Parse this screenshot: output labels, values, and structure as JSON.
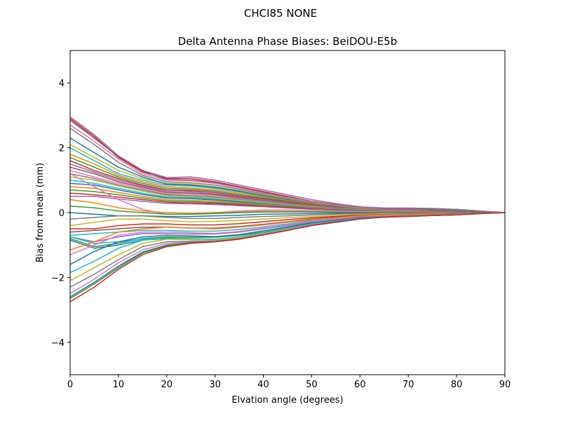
{
  "suptitle": "CHCI85           NONE",
  "chart_data": {
    "type": "line",
    "title": "Delta Antenna Phase Biases: BeiDOU-E5b",
    "xlabel": "Elvation angle (degrees)",
    "ylabel": "Bias from mean (mm)",
    "xlim": [
      0,
      90
    ],
    "ylim": [
      -5,
      5
    ],
    "xticks": [
      0,
      10,
      20,
      30,
      40,
      50,
      60,
      70,
      80,
      90
    ],
    "yticks": [
      -4,
      -2,
      0,
      2,
      4
    ],
    "xtick_labels": [
      "0",
      "10",
      "20",
      "30",
      "40",
      "50",
      "60",
      "70",
      "80",
      "90"
    ],
    "ytick_labels": [
      "−4",
      "−2",
      "0",
      "2",
      "4"
    ],
    "grid": false,
    "legend": "none",
    "x": [
      0,
      5,
      10,
      15,
      20,
      25,
      30,
      35,
      40,
      45,
      50,
      55,
      60,
      65,
      70,
      75,
      80,
      85,
      90
    ],
    "series": [
      {
        "color": "#d62728",
        "values": [
          2.9,
          2.35,
          1.7,
          1.25,
          1.05,
          1.05,
          0.95,
          0.8,
          0.65,
          0.5,
          0.35,
          0.25,
          0.15,
          0.12,
          0.12,
          0.12,
          0.1,
          0.05,
          0.0
        ]
      },
      {
        "color": "#9467bd",
        "values": [
          2.95,
          2.4,
          1.75,
          1.3,
          1.08,
          1.1,
          1.0,
          0.85,
          0.7,
          0.55,
          0.4,
          0.28,
          0.18,
          0.14,
          0.14,
          0.13,
          0.1,
          0.05,
          0.0
        ]
      },
      {
        "color": "#8c564b",
        "values": [
          2.85,
          2.3,
          1.72,
          1.28,
          1.02,
          1.0,
          0.92,
          0.78,
          0.62,
          0.48,
          0.34,
          0.24,
          0.15,
          0.12,
          0.12,
          0.11,
          0.09,
          0.04,
          0.0
        ]
      },
      {
        "color": "#e377c2",
        "values": [
          2.7,
          2.2,
          1.65,
          1.2,
          1.0,
          0.98,
          0.9,
          0.76,
          0.6,
          0.46,
          0.33,
          0.23,
          0.14,
          0.11,
          0.11,
          0.1,
          0.08,
          0.04,
          0.0
        ]
      },
      {
        "color": "#7f7f7f",
        "values": [
          2.6,
          2.1,
          1.55,
          1.15,
          0.95,
          0.92,
          0.85,
          0.72,
          0.57,
          0.44,
          0.31,
          0.22,
          0.13,
          0.1,
          0.1,
          0.1,
          0.08,
          0.04,
          0.0
        ]
      },
      {
        "color": "#bcbd22",
        "values": [
          2.1,
          1.7,
          1.3,
          1.05,
          0.9,
          0.88,
          0.8,
          0.68,
          0.54,
          0.42,
          0.3,
          0.21,
          0.13,
          0.1,
          0.1,
          0.09,
          0.07,
          0.03,
          0.0
        ]
      },
      {
        "color": "#17becf",
        "values": [
          2.0,
          1.6,
          1.2,
          1.0,
          0.85,
          0.82,
          0.75,
          0.64,
          0.51,
          0.4,
          0.28,
          0.2,
          0.12,
          0.09,
          0.09,
          0.09,
          0.07,
          0.03,
          0.0
        ]
      },
      {
        "color": "#1f77b4",
        "values": [
          2.3,
          1.85,
          1.4,
          1.1,
          0.88,
          0.85,
          0.78,
          0.66,
          0.52,
          0.4,
          0.29,
          0.2,
          0.12,
          0.1,
          0.1,
          0.09,
          0.07,
          0.03,
          0.0
        ]
      },
      {
        "color": "#ff7f0e",
        "values": [
          1.8,
          1.5,
          1.15,
          0.95,
          0.8,
          0.76,
          0.7,
          0.6,
          0.48,
          0.37,
          0.27,
          0.19,
          0.12,
          0.09,
          0.09,
          0.08,
          0.06,
          0.03,
          0.0
        ]
      },
      {
        "color": "#2ca02c",
        "values": [
          1.7,
          1.4,
          1.1,
          0.9,
          0.75,
          0.72,
          0.66,
          0.56,
          0.45,
          0.35,
          0.25,
          0.18,
          0.11,
          0.08,
          0.08,
          0.08,
          0.06,
          0.03,
          0.0
        ]
      },
      {
        "color": "#d62728",
        "values": [
          1.6,
          1.3,
          1.05,
          0.85,
          0.7,
          0.68,
          0.62,
          0.52,
          0.42,
          0.33,
          0.24,
          0.17,
          0.1,
          0.08,
          0.08,
          0.07,
          0.05,
          0.02,
          0.0
        ]
      },
      {
        "color": "#9467bd",
        "values": [
          1.5,
          1.25,
          1.0,
          0.82,
          0.66,
          0.64,
          0.58,
          0.49,
          0.4,
          0.31,
          0.22,
          0.16,
          0.1,
          0.07,
          0.07,
          0.07,
          0.05,
          0.02,
          0.0
        ]
      },
      {
        "color": "#8c564b",
        "values": [
          1.4,
          1.2,
          0.95,
          0.78,
          0.62,
          0.6,
          0.55,
          0.46,
          0.37,
          0.29,
          0.21,
          0.15,
          0.09,
          0.07,
          0.07,
          0.06,
          0.05,
          0.02,
          0.0
        ]
      },
      {
        "color": "#e377c2",
        "values": [
          1.3,
          1.1,
          0.9,
          0.74,
          0.58,
          0.56,
          0.51,
          0.43,
          0.35,
          0.27,
          0.2,
          0.14,
          0.09,
          0.07,
          0.07,
          0.06,
          0.05,
          0.02,
          0.0
        ]
      },
      {
        "color": "#7f7f7f",
        "values": [
          1.2,
          1.05,
          0.85,
          0.7,
          0.55,
          0.52,
          0.48,
          0.4,
          0.33,
          0.26,
          0.19,
          0.13,
          0.08,
          0.06,
          0.06,
          0.06,
          0.04,
          0.02,
          0.0
        ]
      },
      {
        "color": "#bcbd22",
        "values": [
          1.1,
          1.0,
          0.82,
          0.66,
          0.52,
          0.49,
          0.45,
          0.38,
          0.31,
          0.24,
          0.18,
          0.12,
          0.08,
          0.06,
          0.06,
          0.05,
          0.04,
          0.02,
          0.0
        ]
      },
      {
        "color": "#17becf",
        "values": [
          1.0,
          0.9,
          0.75,
          0.6,
          0.48,
          0.46,
          0.42,
          0.35,
          0.29,
          0.23,
          0.17,
          0.12,
          0.07,
          0.06,
          0.06,
          0.05,
          0.04,
          0.02,
          0.0
        ]
      },
      {
        "color": "#1f77b4",
        "values": [
          0.9,
          0.85,
          0.7,
          0.56,
          0.45,
          0.43,
          0.39,
          0.33,
          0.27,
          0.21,
          0.16,
          0.11,
          0.07,
          0.05,
          0.05,
          0.05,
          0.04,
          0.02,
          0.0
        ]
      },
      {
        "color": "#ff7f0e",
        "values": [
          0.8,
          0.75,
          0.62,
          0.5,
          0.4,
          0.38,
          0.35,
          0.3,
          0.25,
          0.2,
          0.15,
          0.1,
          0.06,
          0.05,
          0.05,
          0.04,
          0.03,
          0.01,
          0.0
        ]
      },
      {
        "color": "#2ca02c",
        "values": [
          0.7,
          0.65,
          0.55,
          0.45,
          0.36,
          0.34,
          0.31,
          0.27,
          0.22,
          0.18,
          0.13,
          0.09,
          0.06,
          0.04,
          0.04,
          0.04,
          0.03,
          0.01,
          0.0
        ]
      },
      {
        "color": "#d62728",
        "values": [
          0.6,
          0.55,
          0.48,
          0.4,
          0.32,
          0.3,
          0.28,
          0.24,
          0.2,
          0.16,
          0.12,
          0.08,
          0.05,
          0.04,
          0.04,
          0.04,
          0.03,
          0.01,
          0.0
        ]
      },
      {
        "color": "#9467bd",
        "values": [
          0.5,
          0.5,
          0.42,
          0.35,
          0.28,
          0.27,
          0.25,
          0.21,
          0.18,
          0.14,
          0.1,
          0.07,
          0.05,
          0.04,
          0.04,
          0.03,
          0.02,
          0.01,
          0.0
        ]
      },
      {
        "color": "#e377c2",
        "values": [
          1.2,
          0.8,
          0.4,
          0.1,
          -0.05,
          -0.05,
          0.0,
          0.05,
          0.08,
          0.08,
          0.06,
          0.04,
          0.03,
          0.02,
          0.02,
          0.02,
          0.01,
          0.0,
          0.0
        ]
      },
      {
        "color": "#ff7f0e",
        "values": [
          0.4,
          0.3,
          0.15,
          0.05,
          0.0,
          -0.02,
          0.0,
          0.02,
          0.04,
          0.04,
          0.03,
          0.02,
          0.01,
          0.01,
          0.01,
          0.01,
          0.0,
          0.0,
          0.0
        ]
      },
      {
        "color": "#2ca02c",
        "values": [
          0.2,
          0.15,
          0.05,
          0.0,
          -0.05,
          -0.05,
          -0.03,
          0.0,
          0.02,
          0.02,
          0.02,
          0.01,
          0.0,
          0.0,
          0.0,
          0.0,
          0.0,
          0.0,
          0.0
        ]
      },
      {
        "color": "#1f77b4",
        "values": [
          0.0,
          -0.05,
          -0.1,
          -0.1,
          -0.12,
          -0.12,
          -0.1,
          -0.08,
          -0.05,
          -0.04,
          -0.03,
          -0.02,
          -0.01,
          -0.01,
          -0.01,
          -0.01,
          0.0,
          0.0,
          0.0
        ]
      },
      {
        "color": "#7f7f7f",
        "values": [
          -0.2,
          -0.15,
          -0.1,
          -0.1,
          -0.15,
          -0.18,
          -0.18,
          -0.15,
          -0.12,
          -0.1,
          -0.07,
          -0.05,
          -0.03,
          -0.02,
          -0.02,
          -0.02,
          -0.01,
          0.0,
          0.0
        ]
      },
      {
        "color": "#bcbd22",
        "values": [
          -0.4,
          -0.3,
          -0.2,
          -0.2,
          -0.25,
          -0.28,
          -0.27,
          -0.24,
          -0.2,
          -0.16,
          -0.12,
          -0.09,
          -0.06,
          -0.04,
          -0.04,
          -0.03,
          -0.02,
          -0.01,
          0.0
        ]
      },
      {
        "color": "#d62728",
        "values": [
          -0.5,
          -0.5,
          -0.4,
          -0.35,
          -0.35,
          -0.38,
          -0.38,
          -0.34,
          -0.28,
          -0.22,
          -0.16,
          -0.12,
          -0.08,
          -0.06,
          -0.05,
          -0.04,
          -0.03,
          -0.01,
          0.0
        ]
      },
      {
        "color": "#8c564b",
        "values": [
          -0.6,
          -0.55,
          -0.5,
          -0.45,
          -0.45,
          -0.48,
          -0.48,
          -0.43,
          -0.36,
          -0.28,
          -0.2,
          -0.15,
          -0.1,
          -0.07,
          -0.06,
          -0.05,
          -0.04,
          -0.02,
          0.0
        ]
      },
      {
        "color": "#17becf",
        "values": [
          -0.7,
          -0.65,
          -0.6,
          -0.55,
          -0.55,
          -0.57,
          -0.57,
          -0.52,
          -0.44,
          -0.35,
          -0.25,
          -0.18,
          -0.12,
          -0.09,
          -0.08,
          -0.06,
          -0.05,
          -0.02,
          0.0
        ]
      },
      {
        "color": "#9467bd",
        "values": [
          -0.75,
          -0.9,
          -0.75,
          -0.65,
          -0.65,
          -0.66,
          -0.66,
          -0.6,
          -0.5,
          -0.4,
          -0.29,
          -0.21,
          -0.14,
          -0.1,
          -0.09,
          -0.07,
          -0.05,
          -0.02,
          0.0
        ]
      },
      {
        "color": "#2ca02c",
        "values": [
          -0.8,
          -1.05,
          -0.95,
          -0.8,
          -0.75,
          -0.76,
          -0.76,
          -0.7,
          -0.6,
          -0.47,
          -0.34,
          -0.25,
          -0.17,
          -0.12,
          -0.1,
          -0.08,
          -0.06,
          -0.03,
          0.0
        ]
      },
      {
        "color": "#17becf",
        "values": [
          -0.75,
          -0.95,
          -0.9,
          -0.82,
          -0.8,
          -0.82,
          -0.84,
          -0.78,
          -0.66,
          -0.52,
          -0.38,
          -0.28,
          -0.19,
          -0.13,
          -0.11,
          -0.09,
          -0.07,
          -0.03,
          0.0
        ]
      },
      {
        "color": "#1f77b4",
        "values": [
          -0.85,
          -1.1,
          -1.0,
          -0.85,
          -0.8,
          -0.83,
          -0.85,
          -0.8,
          -0.68,
          -0.54,
          -0.4,
          -0.3,
          -0.2,
          -0.14,
          -0.12,
          -0.09,
          -0.07,
          -0.03,
          0.0
        ]
      },
      {
        "color": "#ff7f0e",
        "values": [
          -1.15,
          -0.9,
          -0.6,
          -0.5,
          -0.45,
          -0.48,
          -0.5,
          -0.45,
          -0.38,
          -0.3,
          -0.22,
          -0.16,
          -0.1,
          -0.07,
          -0.06,
          -0.05,
          -0.04,
          -0.02,
          0.0
        ]
      },
      {
        "color": "#e377c2",
        "values": [
          -1.3,
          -1.0,
          -0.7,
          -0.6,
          -0.6,
          -0.62,
          -0.64,
          -0.58,
          -0.48,
          -0.38,
          -0.27,
          -0.2,
          -0.13,
          -0.09,
          -0.08,
          -0.06,
          -0.05,
          -0.02,
          0.0
        ]
      },
      {
        "color": "#1f77b4",
        "values": [
          -1.6,
          -1.2,
          -0.9,
          -0.75,
          -0.7,
          -0.72,
          -0.74,
          -0.68,
          -0.56,
          -0.44,
          -0.32,
          -0.23,
          -0.15,
          -0.11,
          -0.09,
          -0.07,
          -0.05,
          -0.02,
          0.0
        ]
      },
      {
        "color": "#17becf",
        "values": [
          -1.85,
          -1.5,
          -1.1,
          -0.85,
          -0.78,
          -0.8,
          -0.82,
          -0.75,
          -0.62,
          -0.49,
          -0.35,
          -0.26,
          -0.17,
          -0.12,
          -0.1,
          -0.08,
          -0.06,
          -0.03,
          0.0
        ]
      },
      {
        "color": "#bcbd22",
        "values": [
          -2.1,
          -1.7,
          -1.3,
          -0.95,
          -0.82,
          -0.83,
          -0.85,
          -0.78,
          -0.65,
          -0.51,
          -0.37,
          -0.27,
          -0.18,
          -0.12,
          -0.1,
          -0.08,
          -0.06,
          -0.03,
          0.0
        ]
      },
      {
        "color": "#7f7f7f",
        "values": [
          -2.3,
          -1.9,
          -1.45,
          -1.05,
          -0.9,
          -0.88,
          -0.88,
          -0.8,
          -0.67,
          -0.53,
          -0.38,
          -0.28,
          -0.18,
          -0.13,
          -0.11,
          -0.09,
          -0.06,
          -0.03,
          0.0
        ]
      },
      {
        "color": "#e377c2",
        "values": [
          -2.5,
          -2.05,
          -1.55,
          -1.15,
          -0.95,
          -0.9,
          -0.88,
          -0.8,
          -0.67,
          -0.53,
          -0.38,
          -0.28,
          -0.18,
          -0.13,
          -0.11,
          -0.09,
          -0.06,
          -0.03,
          0.0
        ]
      },
      {
        "color": "#1f77b4",
        "values": [
          -2.6,
          -2.15,
          -1.65,
          -1.22,
          -1.0,
          -0.92,
          -0.89,
          -0.81,
          -0.68,
          -0.54,
          -0.39,
          -0.28,
          -0.19,
          -0.13,
          -0.11,
          -0.09,
          -0.07,
          -0.03,
          0.0
        ]
      },
      {
        "color": "#2ca02c",
        "values": [
          -2.65,
          -2.2,
          -1.7,
          -1.25,
          -1.02,
          -0.93,
          -0.9,
          -0.82,
          -0.69,
          -0.55,
          -0.4,
          -0.29,
          -0.19,
          -0.14,
          -0.12,
          -0.09,
          -0.07,
          -0.03,
          0.0
        ]
      },
      {
        "color": "#d62728",
        "values": [
          -2.75,
          -2.3,
          -1.75,
          -1.3,
          -1.05,
          -0.95,
          -0.9,
          -0.82,
          -0.69,
          -0.55,
          -0.4,
          -0.29,
          -0.19,
          -0.14,
          -0.12,
          -0.09,
          -0.07,
          -0.03,
          0.0
        ]
      }
    ]
  }
}
